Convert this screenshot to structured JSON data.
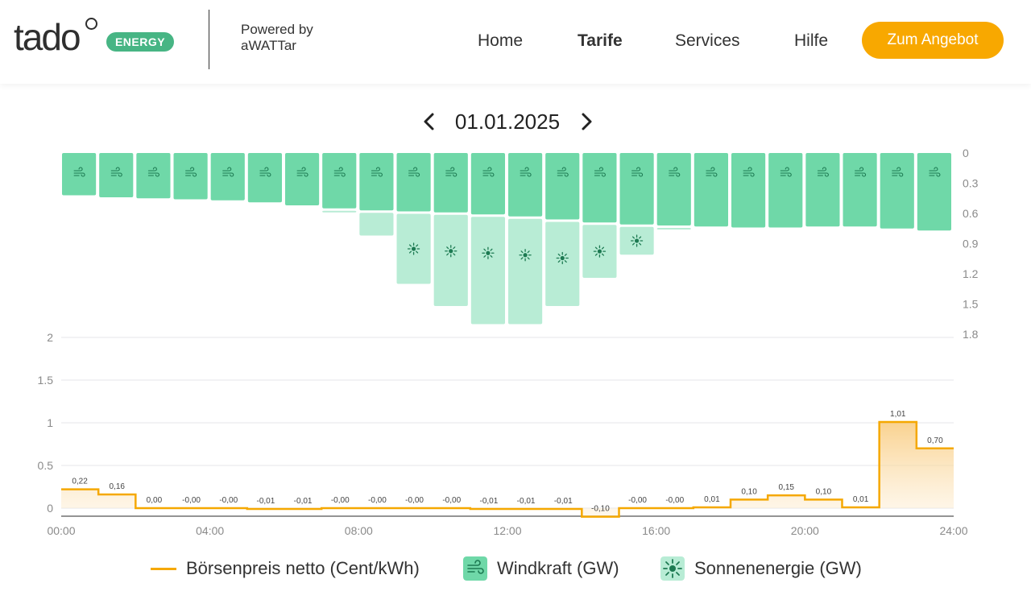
{
  "header": {
    "logo_text": "tado",
    "badge": "ENERGY",
    "powered_line1": "Powered by",
    "powered_line2": "aWATTar",
    "nav": [
      "Home",
      "Tarife",
      "Services",
      "Hilfe"
    ],
    "active_nav": "Tarife",
    "cta": "Zum Angebot"
  },
  "date_nav": {
    "date": "01.01.2025"
  },
  "colors": {
    "wind": "#6fd8a8",
    "sun": "#b8ecd5",
    "price": "#f5a800",
    "accent": "#f8a800",
    "badge": "#47b584"
  },
  "chart_data": [
    {
      "type": "bar",
      "orientation": "downward",
      "x_unit": "hour",
      "ylim": [
        0,
        1.8
      ],
      "y_ticks": [
        "0",
        "0.3",
        "0.6",
        "0.9",
        "1.2",
        "1.5",
        "1.8"
      ],
      "series": [
        {
          "name": "Windkraft (GW)",
          "icon": "wind-icon",
          "values": [
            0.42,
            0.44,
            0.45,
            0.46,
            0.47,
            0.49,
            0.52,
            0.55,
            0.57,
            0.58,
            0.59,
            0.61,
            0.63,
            0.66,
            0.69,
            0.71,
            0.72,
            0.73,
            0.74,
            0.74,
            0.73,
            0.73,
            0.75,
            0.77
          ]
        },
        {
          "name": "Sonnenenergie (GW)",
          "icon": "sun-icon",
          "values": [
            0,
            0,
            0,
            0,
            0,
            0,
            0,
            0.02,
            0.25,
            0.72,
            0.93,
            1.09,
            1.07,
            0.86,
            0.55,
            0.3,
            0.04,
            0,
            0,
            0,
            0,
            0,
            0,
            0
          ]
        }
      ]
    },
    {
      "type": "line",
      "step": true,
      "ylim": [
        -0.15,
        2
      ],
      "y_ticks": [
        "0",
        "0.5",
        "1",
        "1.5",
        "2"
      ],
      "x_ticks": [
        "00:00",
        "04:00",
        "08:00",
        "12:00",
        "16:00",
        "20:00",
        "24:00"
      ],
      "series": [
        {
          "name": "Börsenpreis netto (Cent/kWh)",
          "values": [
            0.22,
            0.16,
            0.0,
            -0.0,
            -0.0,
            -0.01,
            -0.01,
            -0.0,
            -0.0,
            -0.0,
            -0.0,
            -0.01,
            -0.01,
            -0.01,
            -0.1,
            -0.0,
            -0.0,
            0.01,
            0.1,
            0.15,
            0.1,
            0.01,
            1.01,
            0.7
          ],
          "labels": [
            "0,22",
            "0,16",
            "0,00",
            "-0,00",
            "-0,00",
            "-0,01",
            "-0,01",
            "-0,00",
            "-0,00",
            "-0,00",
            "-0,00",
            "-0,01",
            "-0,01",
            "-0,01",
            "-0,10",
            "-0,00",
            "-0,00",
            "0,01",
            "0,10",
            "0,15",
            "0,10",
            "0,01",
            "1,01",
            "0,70"
          ]
        }
      ]
    }
  ],
  "legend": [
    {
      "label": "Börsenpreis netto (Cent/kWh)",
      "kind": "line"
    },
    {
      "label": "Windkraft (GW)",
      "kind": "wind"
    },
    {
      "label": "Sonnenenergie (GW)",
      "kind": "sun"
    }
  ]
}
